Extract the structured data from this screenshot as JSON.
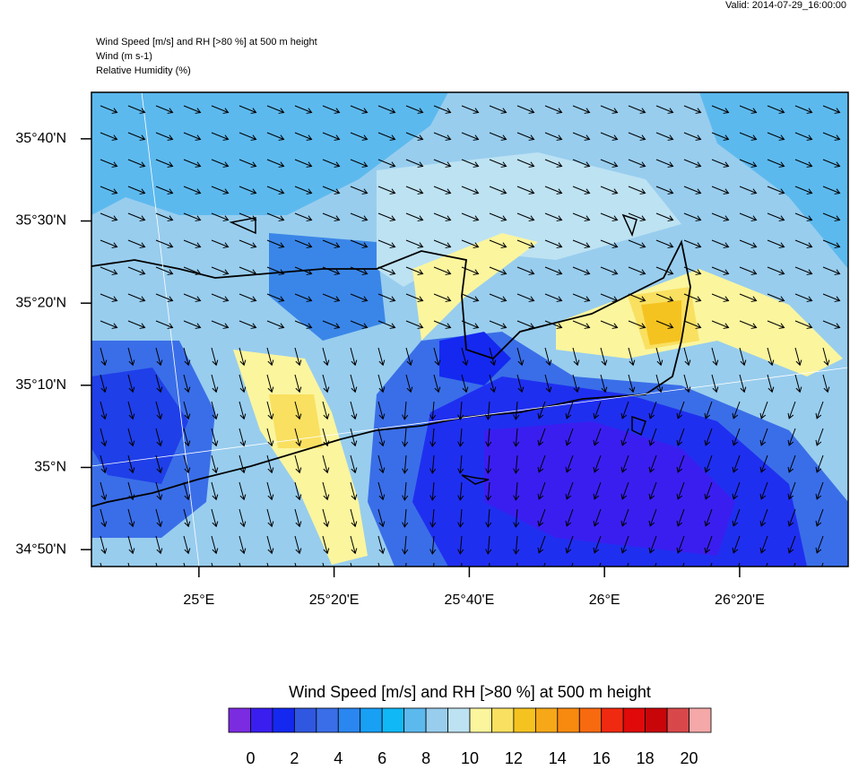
{
  "header": {
    "valid": "Valid: 2014-07-29_16:00:00",
    "title": "Wind Speed [m/s] and RH [>80 %] at 500 m height",
    "line2": "Wind   (m s-1)",
    "line3": "Relative Humidity   (%)"
  },
  "map": {
    "xlim": [
      24.735,
      26.601
    ],
    "ylim": [
      34.799,
      35.761
    ],
    "yticks": [
      {
        "value": 35.6667,
        "label": "35°40'N"
      },
      {
        "value": 35.5,
        "label": "35°30'N"
      },
      {
        "value": 35.3333,
        "label": "35°20'N"
      },
      {
        "value": 35.1667,
        "label": "35°10'N"
      },
      {
        "value": 35.0,
        "label": "35°N"
      },
      {
        "value": 34.8333,
        "label": "34°50'N"
      }
    ],
    "xticks": [
      {
        "value": 25.0,
        "label": "25°E"
      },
      {
        "value": 25.3333,
        "label": "25°20'E"
      },
      {
        "value": 25.6667,
        "label": "25°40'E"
      },
      {
        "value": 26.0,
        "label": "26°E"
      },
      {
        "value": 26.3333,
        "label": "26°20'E"
      }
    ]
  },
  "colorbar": {
    "title": "Wind Speed [m/s] and RH [>80 %] at 500 m height",
    "lim": [
      -1,
      21
    ],
    "colors": [
      "#7b2be0",
      "#3a1ef0",
      "#1428f0",
      "#3057e0",
      "#3a6ee8",
      "#2a86f0",
      "#18a0f5",
      "#10b8f5",
      "#5cb9ee",
      "#98cdee",
      "#bde2f2",
      "#fbf59e",
      "#f9e060",
      "#f5c320",
      "#f6a818",
      "#f88a10",
      "#f86a10",
      "#f02a10",
      "#e00a0a",
      "#c8060a",
      "#d8484a",
      "#f5a8a8"
    ],
    "ticks": [
      0,
      2,
      4,
      6,
      8,
      10,
      12,
      14,
      16,
      18,
      20
    ]
  }
}
